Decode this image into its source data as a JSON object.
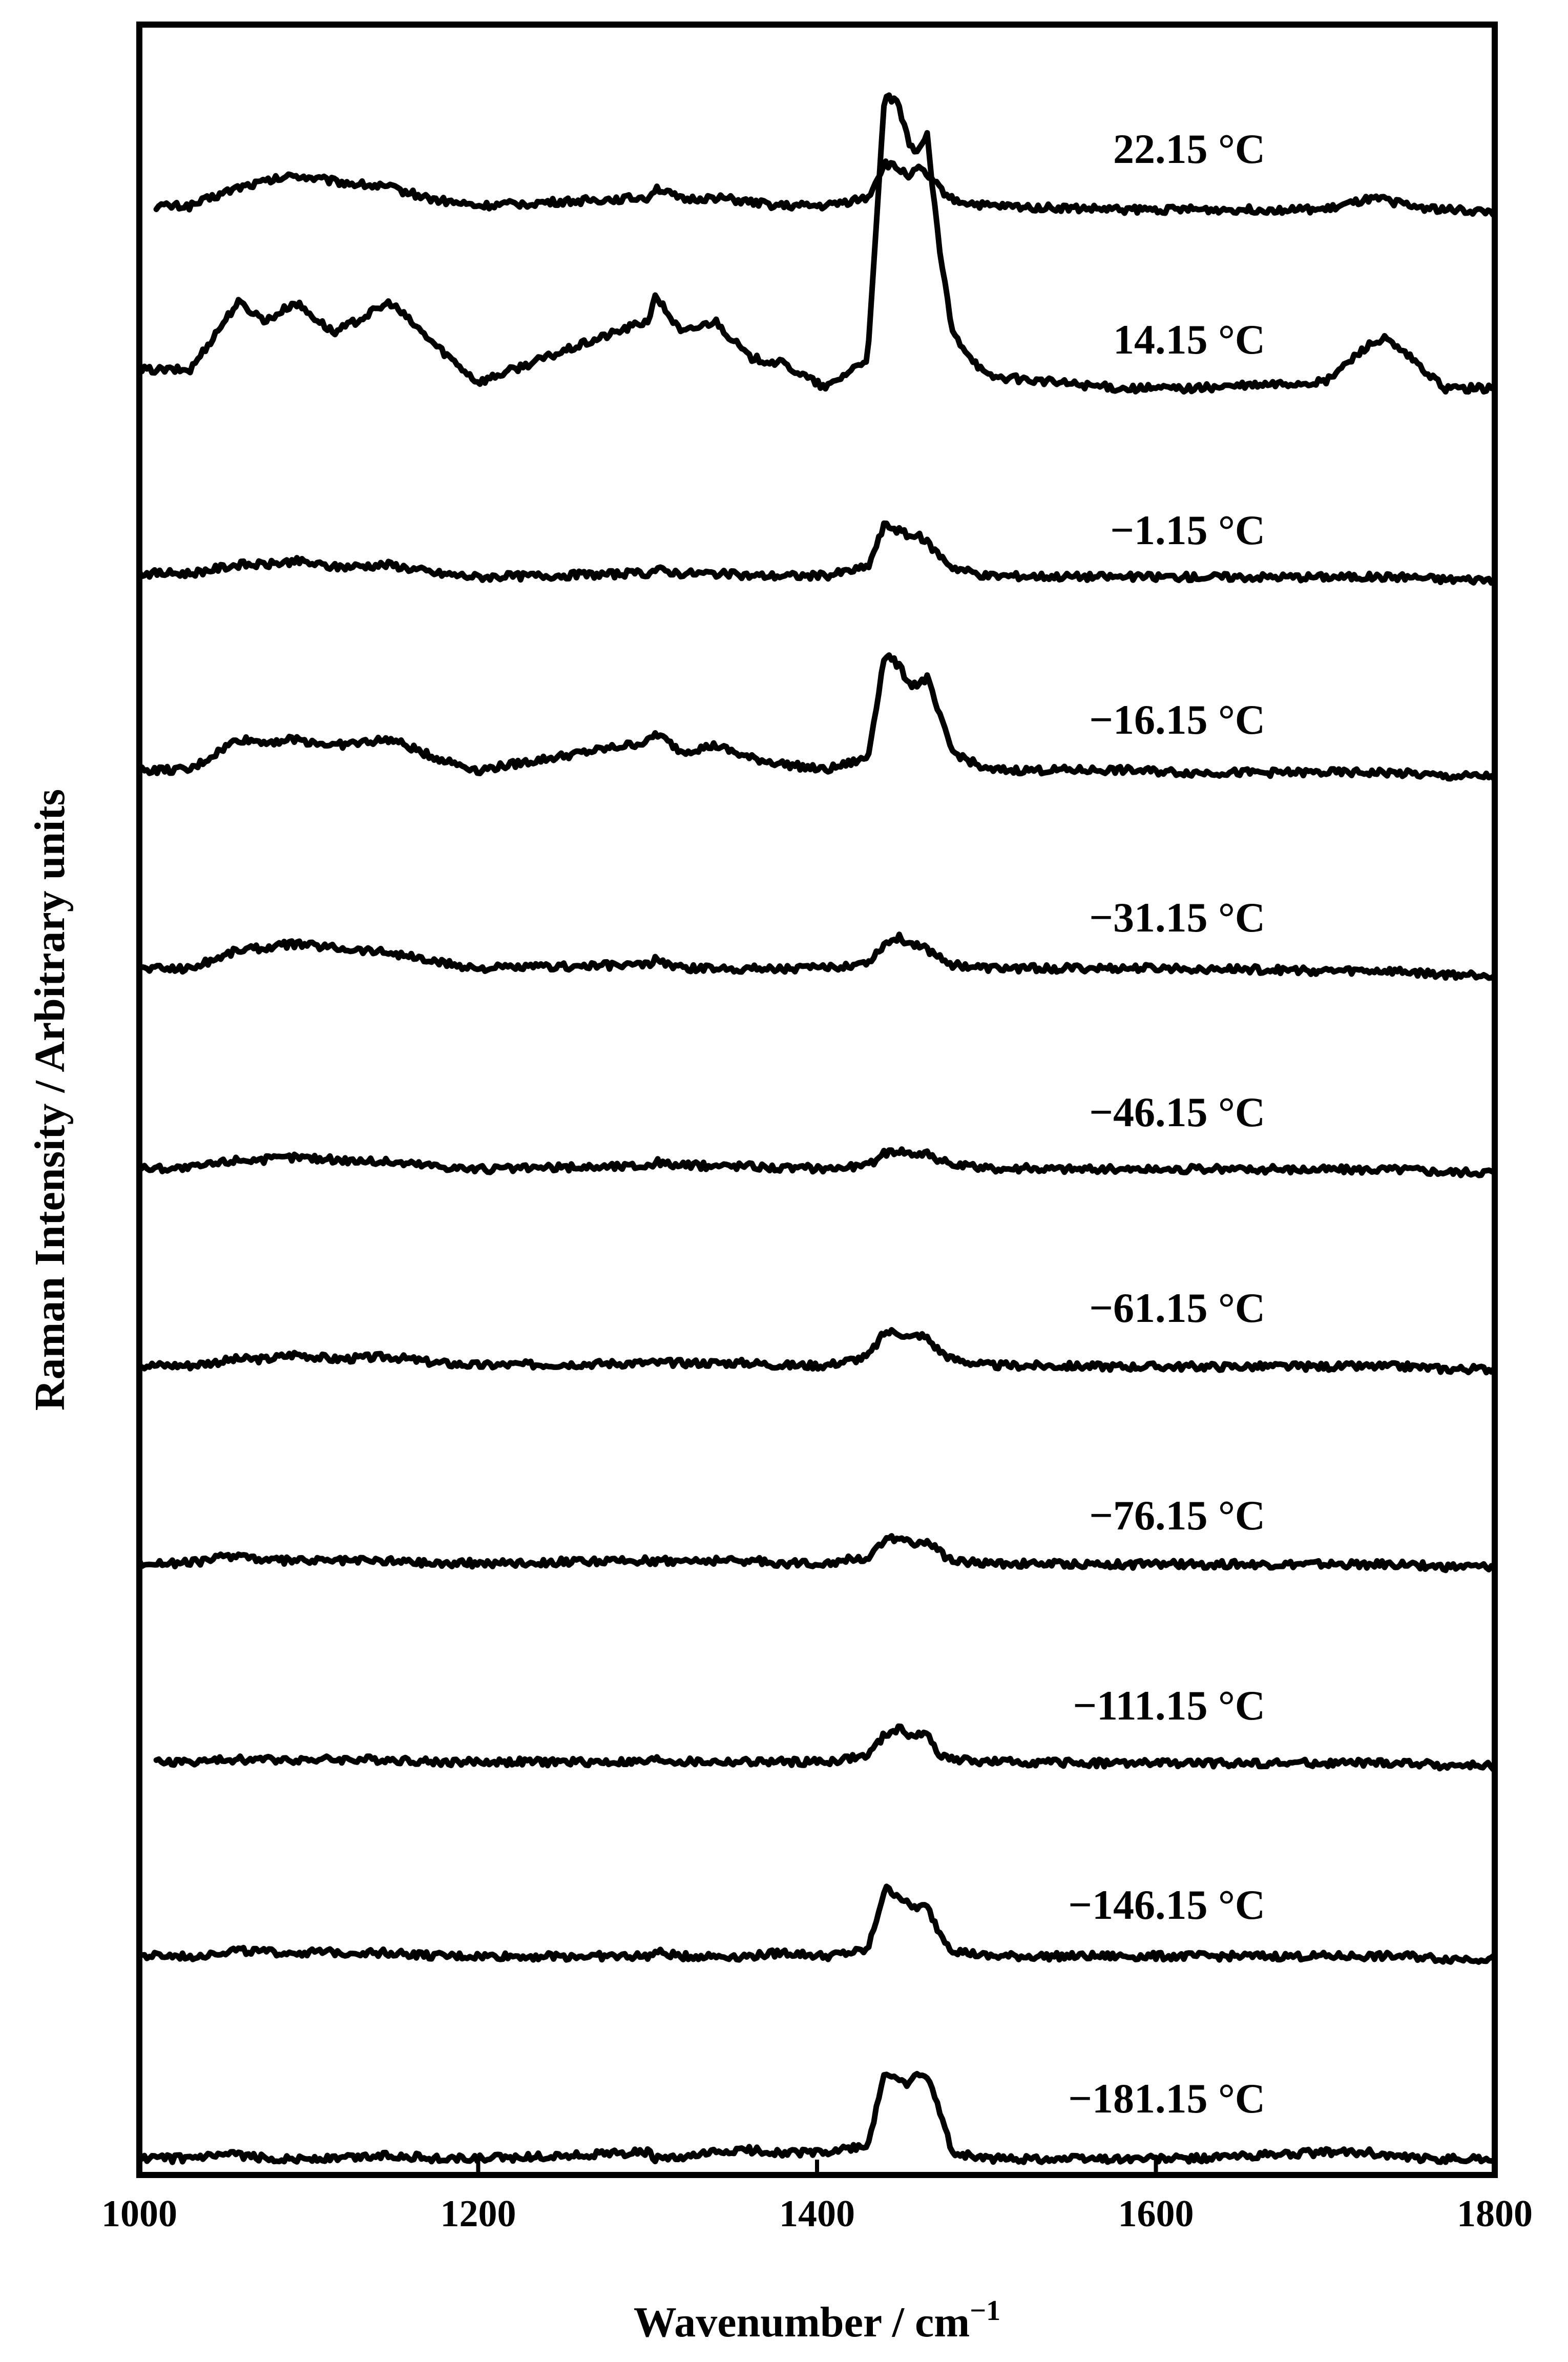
{
  "chart_data": {
    "type": "line",
    "xlabel": "Wavenumber / cm",
    "xlabel_sup": "−1",
    "ylabel": "Raman Intensity / Arbitrary units",
    "xlim": [
      1000,
      1800
    ],
    "xticks": [
      "1000",
      "1200",
      "1400",
      "1600",
      "1800"
    ],
    "y_ticks_shown": false,
    "grid": false,
    "stacked_offset_series": true,
    "series_color": "#000000",
    "peak_shape_points_x": [
      1030,
      1058,
      1075,
      1092,
      1115,
      1148,
      1175,
      1200,
      1300,
      1305,
      1320,
      1340,
      1360,
      1380,
      1405,
      1430,
      1440,
      1448,
      1455,
      1460,
      1465,
      1472,
      1480,
      1500,
      1580,
      1620,
      1700,
      1725,
      1735,
      1750,
      1770,
      1800
    ],
    "series": [
      {
        "name": "22.15 °C",
        "x_start": 1010,
        "values": [
          0.05,
          0.2,
          0.25,
          0.3,
          0.25,
          0.2,
          0.1,
          0.05,
          0.12,
          0.2,
          0.1,
          0.12,
          0.08,
          0.05,
          0.05,
          0.12,
          0.4,
          0.35,
          0.3,
          0.35,
          0.3,
          0.2,
          0.1,
          0.05,
          0.02,
          0.02,
          0.02,
          0.1,
          0.1,
          0.05,
          0.02,
          0.0
        ]
      },
      {
        "name": "14.15 °C",
        "x_start": 1000,
        "values": [
          0.2,
          0.75,
          0.6,
          0.75,
          0.5,
          0.75,
          0.4,
          0.1,
          0.6,
          0.8,
          0.5,
          0.6,
          0.3,
          0.25,
          0.05,
          0.3,
          2.45,
          2.35,
          2.0,
          2.0,
          2.1,
          1.2,
          0.5,
          0.15,
          0.05,
          0.05,
          0.1,
          0.4,
          0.45,
          0.3,
          0.05,
          0.05
        ]
      },
      {
        "name": "−1.15 °C",
        "x_start": 1000,
        "values": [
          0.05,
          0.12,
          0.12,
          0.15,
          0.1,
          0.12,
          0.05,
          0.02,
          0.05,
          0.08,
          0.05,
          0.05,
          0.03,
          0.03,
          0.03,
          0.1,
          0.45,
          0.4,
          0.35,
          0.35,
          0.3,
          0.2,
          0.1,
          0.03,
          0.02,
          0.02,
          0.02,
          0.02,
          0.02,
          0.02,
          0.0,
          0.0
        ]
      },
      {
        "name": "−16.15 °C",
        "x_start": 1000,
        "values": [
          0.05,
          0.3,
          0.28,
          0.3,
          0.25,
          0.3,
          0.15,
          0.05,
          0.28,
          0.35,
          0.2,
          0.25,
          0.15,
          0.1,
          0.05,
          0.15,
          1.0,
          0.9,
          0.75,
          0.75,
          0.8,
          0.5,
          0.2,
          0.05,
          0.05,
          0.03,
          0.03,
          0.03,
          0.03,
          0.02,
          0.0,
          0.0
        ]
      },
      {
        "name": "−31.15 °C",
        "x_start": 1000,
        "values": [
          0.05,
          0.2,
          0.22,
          0.25,
          0.22,
          0.18,
          0.1,
          0.05,
          0.08,
          0.12,
          0.05,
          0.05,
          0.05,
          0.05,
          0.05,
          0.1,
          0.25,
          0.3,
          0.25,
          0.25,
          0.2,
          0.15,
          0.08,
          0.05,
          0.05,
          0.05,
          0.03,
          0.03,
          0.03,
          0.02,
          0.0,
          0.0
        ]
      },
      {
        "name": "−46.15 °C",
        "x_start": 1000,
        "values": [
          0.03,
          0.1,
          0.1,
          0.12,
          0.1,
          0.08,
          0.05,
          0.02,
          0.05,
          0.08,
          0.05,
          0.05,
          0.05,
          0.03,
          0.03,
          0.05,
          0.15,
          0.18,
          0.15,
          0.15,
          0.15,
          0.1,
          0.05,
          0.03,
          0.02,
          0.02,
          0.02,
          0.02,
          0.02,
          0.02,
          0.0,
          0.0
        ]
      },
      {
        "name": "−61.15 °C",
        "x_start": 1000,
        "values": [
          0.03,
          0.08,
          0.08,
          0.12,
          0.08,
          0.1,
          0.05,
          0.03,
          0.05,
          0.05,
          0.05,
          0.05,
          0.05,
          0.03,
          0.03,
          0.1,
          0.3,
          0.3,
          0.25,
          0.28,
          0.25,
          0.15,
          0.08,
          0.03,
          0.02,
          0.02,
          0.02,
          0.02,
          0.02,
          0.02,
          0.0,
          0.0
        ]
      },
      {
        "name": "−76.15 °C",
        "x_start": 1000,
        "values": [
          0.03,
          0.1,
          0.05,
          0.05,
          0.05,
          0.05,
          0.03,
          0.03,
          0.05,
          0.05,
          0.05,
          0.05,
          0.05,
          0.03,
          0.03,
          0.08,
          0.2,
          0.25,
          0.2,
          0.2,
          0.2,
          0.12,
          0.05,
          0.03,
          0.02,
          0.02,
          0.02,
          0.02,
          0.02,
          0.02,
          0.0,
          0.0
        ]
      },
      {
        "name": "−111.15 °C",
        "x_start": 1010,
        "values": [
          0.03,
          0.05,
          0.05,
          0.05,
          0.05,
          0.05,
          0.03,
          0.03,
          0.03,
          0.05,
          0.03,
          0.03,
          0.03,
          0.03,
          0.03,
          0.08,
          0.25,
          0.3,
          0.25,
          0.25,
          0.25,
          0.1,
          0.05,
          0.03,
          0.02,
          0.02,
          0.02,
          0.02,
          0.02,
          0.02,
          0.0,
          0.0
        ]
      },
      {
        "name": "−146.15 °C",
        "x_start": 1000,
        "values": [
          0.05,
          0.1,
          0.08,
          0.08,
          0.08,
          0.08,
          0.05,
          0.05,
          0.05,
          0.08,
          0.05,
          0.05,
          0.05,
          0.08,
          0.05,
          0.1,
          0.6,
          0.55,
          0.45,
          0.45,
          0.45,
          0.25,
          0.1,
          0.05,
          0.05,
          0.05,
          0.05,
          0.05,
          0.05,
          0.05,
          0.03,
          0.03
        ]
      },
      {
        "name": "−181.15 °C",
        "x_start": 1000,
        "values": [
          0.05,
          0.08,
          0.05,
          0.05,
          0.05,
          0.08,
          0.05,
          0.05,
          0.1,
          0.05,
          0.05,
          0.1,
          0.12,
          0.1,
          0.1,
          0.15,
          0.75,
          0.7,
          0.65,
          0.75,
          0.7,
          0.45,
          0.1,
          0.05,
          0.05,
          0.05,
          0.1,
          0.1,
          0.08,
          0.05,
          0.05,
          0.05
        ]
      }
    ]
  }
}
